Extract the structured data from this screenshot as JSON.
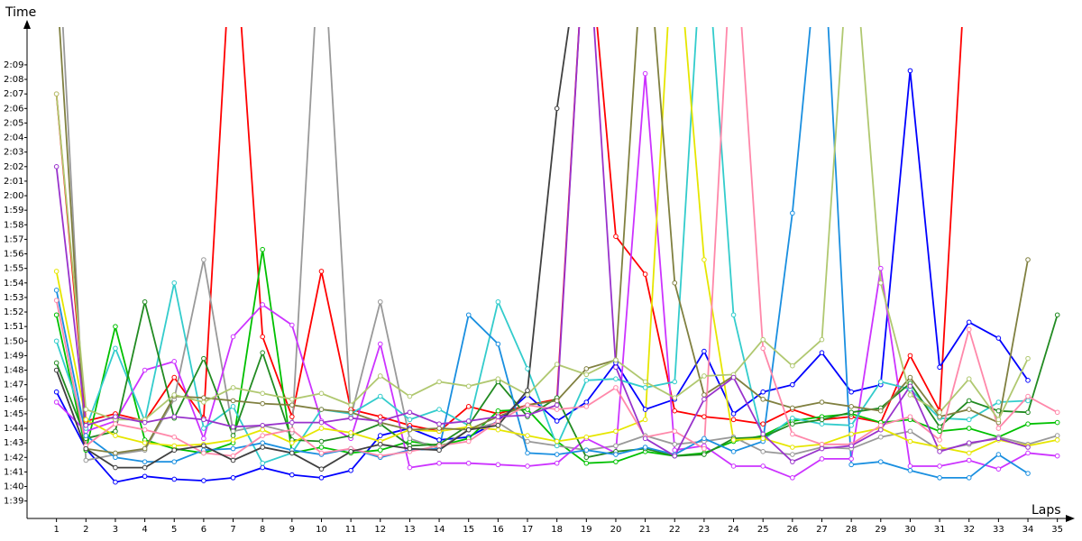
{
  "chart_data": {
    "type": "line",
    "y_label": "Time",
    "x_label": "Laps",
    "x": [
      1,
      2,
      3,
      4,
      5,
      6,
      7,
      8,
      9,
      10,
      11,
      12,
      13,
      14,
      15,
      16,
      17,
      18,
      19,
      20,
      21,
      22,
      23,
      24,
      25,
      26,
      27,
      28,
      29,
      30,
      31,
      32,
      33,
      34,
      35
    ],
    "xlim": [
      0,
      35.5
    ],
    "xticks": [
      1,
      2,
      3,
      4,
      5,
      6,
      7,
      8,
      9,
      10,
      11,
      12,
      13,
      14,
      15,
      16,
      17,
      18,
      19,
      20,
      21,
      22,
      23,
      24,
      25,
      26,
      27,
      28,
      29,
      30,
      31,
      32,
      33,
      34,
      35
    ],
    "ylim": [
      97.8,
      131.6
    ],
    "yticks": [
      {
        "value": 99,
        "label": "1:39"
      },
      {
        "value": 100,
        "label": "1:40"
      },
      {
        "value": 101,
        "label": "1:41"
      },
      {
        "value": 102,
        "label": "1:42"
      },
      {
        "value": 103,
        "label": "1:43"
      },
      {
        "value": 104,
        "label": "1:44"
      },
      {
        "value": 105,
        "label": "1:45"
      },
      {
        "value": 106,
        "label": "1:46"
      },
      {
        "value": 107,
        "label": "1:47"
      },
      {
        "value": 108,
        "label": "1:48"
      },
      {
        "value": 109,
        "label": "1:49"
      },
      {
        "value": 110,
        "label": "1:50"
      },
      {
        "value": 111,
        "label": "1:51"
      },
      {
        "value": 112,
        "label": "1:52"
      },
      {
        "value": 113,
        "label": "1:53"
      },
      {
        "value": 114,
        "label": "1:54"
      },
      {
        "value": 115,
        "label": "1:55"
      },
      {
        "value": 116,
        "label": "1:56"
      },
      {
        "value": 117,
        "label": "1:57"
      },
      {
        "value": 118,
        "label": "1:58"
      },
      {
        "value": 119,
        "label": "1:59"
      },
      {
        "value": 120,
        "label": "2:00"
      },
      {
        "value": 121,
        "label": "2:01"
      },
      {
        "value": 122,
        "label": "2:02"
      },
      {
        "value": 123,
        "label": "2:03"
      },
      {
        "value": 124,
        "label": "2:04"
      },
      {
        "value": 125,
        "label": "2:05"
      },
      {
        "value": 126,
        "label": "2:06"
      },
      {
        "value": 127,
        "label": "2:07"
      },
      {
        "value": 128,
        "label": "2:08"
      },
      {
        "value": 129,
        "label": "2:09"
      }
    ],
    "grid": false,
    "series": [
      {
        "color": "#ff0000",
        "values": [
          127,
          104.5,
          105,
          104.5,
          107.5,
          104.7,
          140,
          110.3,
          104.8,
          114.8,
          105.3,
          104.8,
          104.2,
          103.8,
          105.5,
          105,
          105.6,
          106,
          140,
          117.2,
          114.6,
          105.2,
          104.8,
          104.6,
          104.3,
          105.3,
          104.6,
          104.8,
          104.4,
          109,
          105.2,
          140,
          null,
          null,
          null
        ]
      },
      {
        "color": "#0000ff",
        "values": [
          106.5,
          102.6,
          100.3,
          100.7,
          100.5,
          100.4,
          100.6,
          101.3,
          100.8,
          100.6,
          101.1,
          103.5,
          104,
          103.2,
          103.4,
          104.5,
          106.3,
          104.5,
          105.8,
          108.5,
          105.3,
          106,
          109.3,
          105,
          106.5,
          107,
          109.2,
          106.5,
          107,
          128.6,
          108.2,
          111.3,
          110.2,
          107.3,
          null
        ]
      },
      {
        "color": "#00c000",
        "values": [
          111.8,
          102.5,
          111,
          103.2,
          102.6,
          102.3,
          103,
          116.3,
          102.3,
          102.7,
          102.3,
          102.5,
          103.1,
          102.8,
          103.3,
          105.2,
          105.3,
          103.1,
          101.6,
          101.7,
          102.4,
          102.1,
          102.3,
          103.1,
          103.5,
          104.5,
          104.8,
          105,
          104.4,
          104.6,
          103.8,
          104,
          103.4,
          104.3,
          104.4
        ]
      },
      {
        "color": "#999999",
        "values": [
          140,
          101.8,
          102.2,
          102.5,
          106,
          115.6,
          103.8,
          104.2,
          103.7,
          140,
          104.8,
          112.7,
          103.3,
          102.6,
          103.9,
          104.4,
          103.1,
          102.8,
          102.5,
          102.8,
          103.5,
          102.9,
          103.1,
          103.4,
          102.4,
          102.2,
          102.7,
          102.6,
          103.4,
          103.8,
          102.5,
          102.9,
          103.4,
          102.9,
          103.5
        ]
      },
      {
        "color": "#cc33ff",
        "values": [
          105.8,
          103.8,
          104.5,
          108,
          108.6,
          103.3,
          110.3,
          112.5,
          111.1,
          104.5,
          103.3,
          109.8,
          101.3,
          101.6,
          101.6,
          101.5,
          101.4,
          101.6,
          103.3,
          102.3,
          128.4,
          102.5,
          102.8,
          101.4,
          101.4,
          100.6,
          101.9,
          101.9,
          115,
          101.4,
          101.4,
          101.8,
          101.2,
          102.3,
          102.1
        ]
      },
      {
        "color": "#33cccc",
        "values": [
          110,
          104,
          109.5,
          104.5,
          114,
          104,
          105.5,
          101.6,
          102.3,
          105.3,
          105,
          106.2,
          104.6,
          105.3,
          104.2,
          112.7,
          108.1,
          102.8,
          107.3,
          107.4,
          106.8,
          107.2,
          140,
          111.8,
          103.2,
          104.7,
          104.3,
          104.2,
          107.2,
          106.7,
          104.7,
          104.6,
          105.8,
          105.9,
          null
        ]
      },
      {
        "color": "#228b22",
        "values": [
          108.5,
          103.3,
          103.8,
          112.7,
          104.7,
          108.8,
          103.5,
          109.2,
          103.2,
          103.1,
          103.5,
          104.3,
          102.8,
          102.9,
          104.2,
          107.2,
          104.8,
          106.1,
          102,
          102.4,
          102.6,
          102.1,
          102.2,
          103.3,
          103.4,
          104.3,
          104.6,
          105.1,
          105.4,
          107.1,
          104.1,
          105.9,
          105.2,
          105.1,
          111.8
        ]
      },
      {
        "color": "#1a8fe0",
        "values": [
          113.5,
          103.5,
          102,
          101.7,
          101.7,
          102.5,
          102.6,
          103,
          102.5,
          102.2,
          102.6,
          102,
          102.5,
          102.6,
          111.8,
          109.8,
          102.3,
          102.2,
          102.5,
          102.2,
          102.7,
          102.2,
          103.3,
          102.4,
          103.1,
          118.8,
          140,
          101.5,
          101.7,
          101.1,
          100.6,
          100.6,
          102.2,
          100.9,
          null
        ]
      },
      {
        "color": "#e6e600",
        "values": [
          114.8,
          104.6,
          103.5,
          103,
          102.8,
          102.9,
          103.2,
          103.9,
          103,
          104,
          103.7,
          103.1,
          103.9,
          103.8,
          104.1,
          103.9,
          103.5,
          103.1,
          103.4,
          103.8,
          104.6,
          140,
          115.6,
          103.2,
          103.3,
          102.7,
          102.9,
          103.6,
          104,
          103.1,
          102.7,
          102.3,
          103.2,
          102.8,
          103.2
        ]
      },
      {
        "color": "#808040",
        "values": [
          135,
          102.6,
          102.3,
          102.6,
          106.2,
          106.1,
          105.9,
          105.7,
          105.6,
          105.3,
          105.1,
          104.4,
          103.9,
          104,
          103.9,
          104.8,
          105.6,
          105.9,
          108.1,
          108.7,
          140,
          114,
          106.3,
          107.6,
          106,
          105.4,
          105.8,
          105.5,
          105.2,
          107.5,
          104.8,
          105.3,
          104.4,
          115.6,
          null
        ]
      },
      {
        "color": "#ff88aa",
        "values": [
          112.8,
          102.8,
          104.3,
          103.9,
          103.4,
          102.3,
          102.1,
          103.5,
          103.9,
          102.3,
          102.6,
          102.1,
          102.4,
          102.8,
          103.1,
          104.5,
          105.6,
          105.3,
          105.5,
          106.8,
          103.4,
          103.8,
          102.6,
          140,
          109.5,
          103.6,
          102.9,
          102.9,
          104.2,
          104.8,
          103.2,
          110.8,
          104,
          106.2,
          105.1
        ]
      },
      {
        "color": "#b0c870",
        "values": [
          127,
          105.3,
          104.6,
          104.6,
          106.3,
          105.8,
          106.8,
          106.4,
          106,
          106.4,
          105.6,
          107.6,
          106.2,
          107.2,
          106.9,
          107.4,
          106.3,
          108.4,
          107.7,
          108.7,
          107.2,
          106.1,
          107.6,
          107.7,
          110.1,
          108.3,
          110.1,
          140,
          114,
          106.3,
          105.1,
          107.4,
          104.6,
          108.8,
          null
        ]
      },
      {
        "color": "#404040",
        "values": [
          108,
          102.6,
          101.3,
          101.3,
          102.5,
          102.8,
          101.8,
          102.7,
          102.3,
          101.2,
          102.4,
          102.9,
          102.6,
          102.5,
          103.9,
          104.2,
          106.6,
          126,
          140,
          null,
          null,
          null,
          null,
          null,
          null,
          null,
          null,
          null,
          null,
          null,
          null,
          null,
          null,
          null,
          null
        ]
      },
      {
        "color": "#9933cc",
        "values": [
          122,
          104.2,
          104.8,
          104.4,
          104.8,
          104.6,
          104.1,
          104.2,
          104.4,
          104.4,
          104.7,
          104.5,
          105.1,
          104.3,
          104.5,
          104.8,
          104.9,
          105.6,
          140,
          108.2,
          103.3,
          102.1,
          106,
          107.5,
          103.6,
          101.7,
          102.6,
          102.8,
          103.9,
          106.9,
          102.4,
          103,
          103.3,
          102.7,
          null
        ]
      }
    ]
  }
}
